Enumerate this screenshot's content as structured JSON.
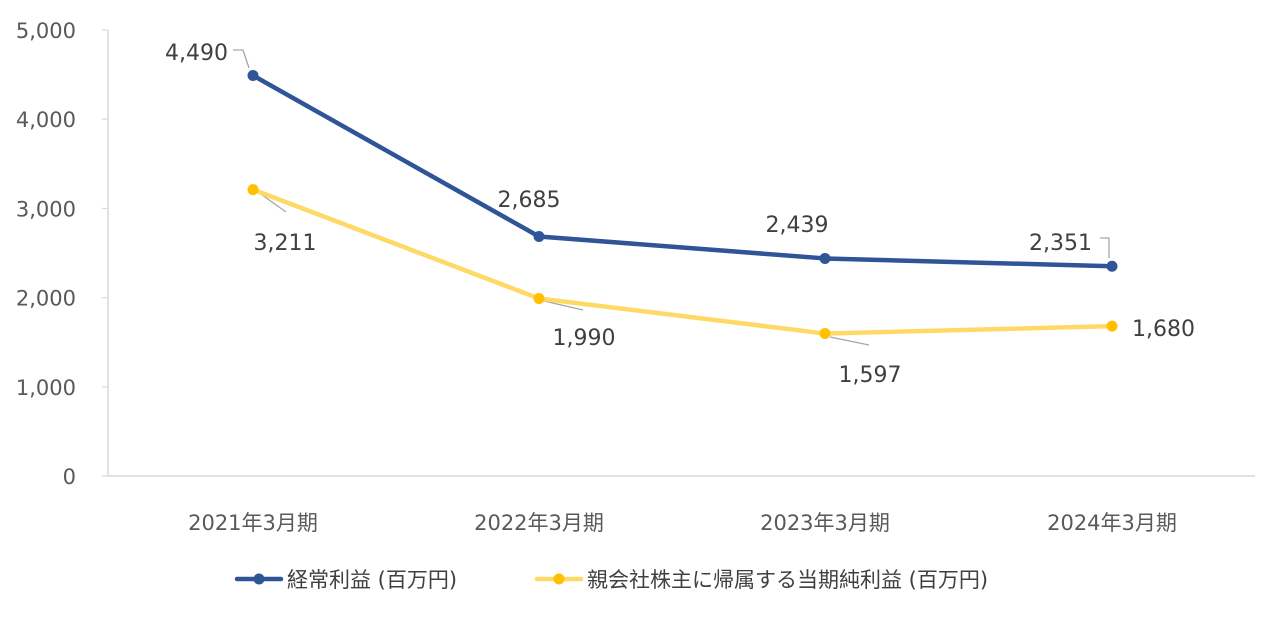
{
  "chart_data": {
    "type": "line",
    "categories": [
      "2021年3月期",
      "2022年3月期",
      "2023年3月期",
      "2024年3月期"
    ],
    "series": [
      {
        "name": "経常利益 (百万円)",
        "values": [
          4490,
          2685,
          2439,
          2351
        ],
        "labels": [
          "4,490",
          "2,685",
          "2,439",
          "2,351"
        ],
        "color": "#2F5597"
      },
      {
        "name": "親会社株主に帰属する当期純利益 (百万円)",
        "values": [
          3211,
          1990,
          1597,
          1680
        ],
        "labels": [
          "3,211",
          "1,990",
          "1,597",
          "1,680"
        ],
        "color": "#FFD966",
        "marker_color": "#FFC000"
      }
    ],
    "ylim": [
      0,
      5000
    ],
    "y_ticks": [
      "0",
      "1,000",
      "2,000",
      "3,000",
      "4,000",
      "5,000"
    ],
    "y_tick_values": [
      0,
      1000,
      2000,
      3000,
      4000,
      5000
    ],
    "grid": false,
    "legend_position": "bottom",
    "leader_line_color": "#A6A6A6",
    "axis_color": "#D9D9D9"
  }
}
